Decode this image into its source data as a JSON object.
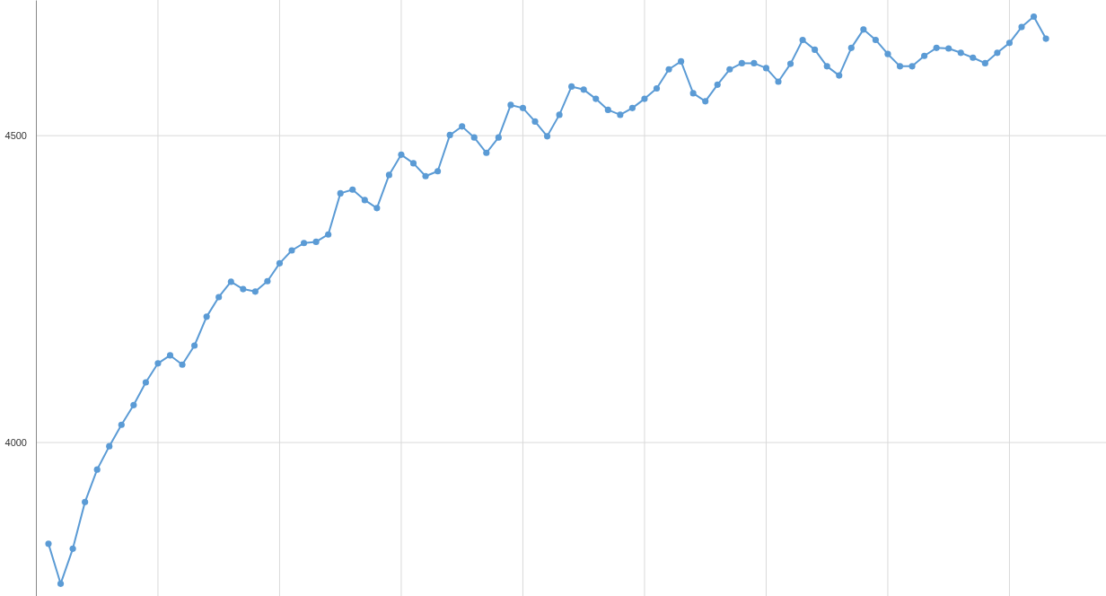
{
  "chart_data": {
    "type": "line",
    "categories": [
      null,
      null,
      null,
      null,
      null,
      null,
      null,
      null,
      null,
      null,
      null,
      null,
      null,
      null,
      null,
      null,
      null,
      null,
      null,
      null,
      null,
      null,
      null,
      null,
      null,
      null,
      null,
      null,
      null,
      null,
      null,
      null,
      null,
      null,
      null,
      null,
      null,
      null,
      null,
      null,
      null,
      null,
      null,
      null,
      null,
      null,
      null,
      null,
      null,
      null,
      null,
      null,
      null,
      null,
      null,
      null,
      null,
      null,
      null,
      null,
      null,
      null,
      null,
      null,
      null,
      null,
      null,
      null,
      null,
      null,
      null,
      null,
      null,
      null,
      null,
      null,
      null,
      null,
      null,
      null,
      null,
      null,
      null
    ],
    "series": [
      {
        "color": "#5b9bd5",
        "values": [
          3835,
          3770,
          3827,
          3903,
          3956,
          3994,
          4029,
          4061,
          4098,
          4129,
          4142,
          4127,
          4158,
          4205,
          4237,
          4262,
          4250,
          4246,
          4263,
          4292,
          4313,
          4325,
          4327,
          4339,
          4406,
          4412,
          4395,
          4382,
          4436,
          4469,
          4455,
          4434,
          4442,
          4501,
          4515,
          4497,
          4472,
          4497,
          4550,
          4545,
          4523,
          4499,
          4534,
          4580,
          4575,
          4560,
          4542,
          4534,
          4545,
          4560,
          4577,
          4608,
          4621,
          4569,
          4556,
          4583,
          4608,
          4618,
          4618,
          4610,
          4588,
          4617,
          4656,
          4640,
          4613,
          4598,
          4643,
          4673,
          4656,
          4633,
          4613,
          4613,
          4630,
          4643,
          4642,
          4635,
          4627,
          4618,
          4635,
          4651,
          4677,
          4694,
          4658
        ]
      }
    ],
    "ylim": [
      3750,
      4721
    ],
    "yticks": [
      4000,
      4500
    ],
    "grid": true,
    "tick_labels": "y",
    "marker": "circle",
    "line_style": "solid"
  }
}
